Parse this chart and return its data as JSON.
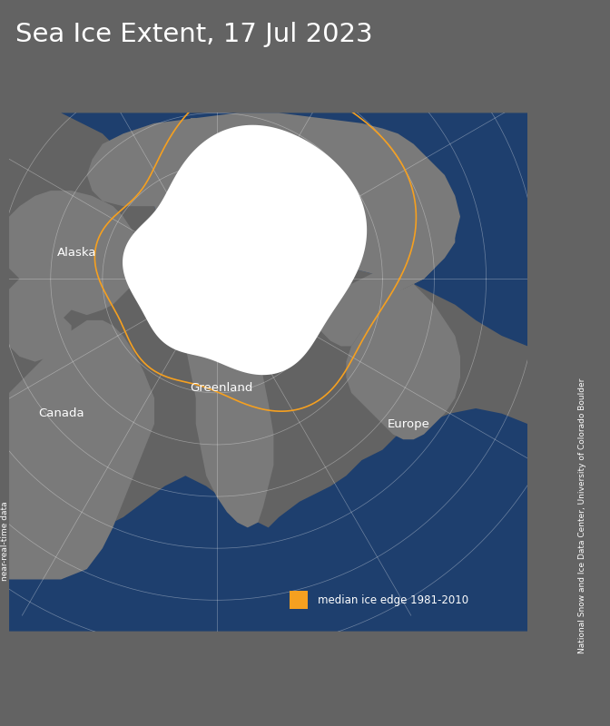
{
  "title": "Sea Ice Extent, 17 Jul 2023",
  "title_fontsize": 21,
  "title_color": "#ffffff",
  "background_color": "#636363",
  "map_bg_color": "#636363",
  "ocean_color": "#1e3f6e",
  "land_color": "#7a7a7a",
  "ice_color": "#ffffff",
  "median_edge_color": "#f5a020",
  "legend_text": "median ice edge 1981-2010",
  "left_label": "near-real-time data",
  "right_label": "National Snow and Ice Data Center, University of Colorado Boulder",
  "fig_width": 6.72,
  "fig_height": 8.0
}
